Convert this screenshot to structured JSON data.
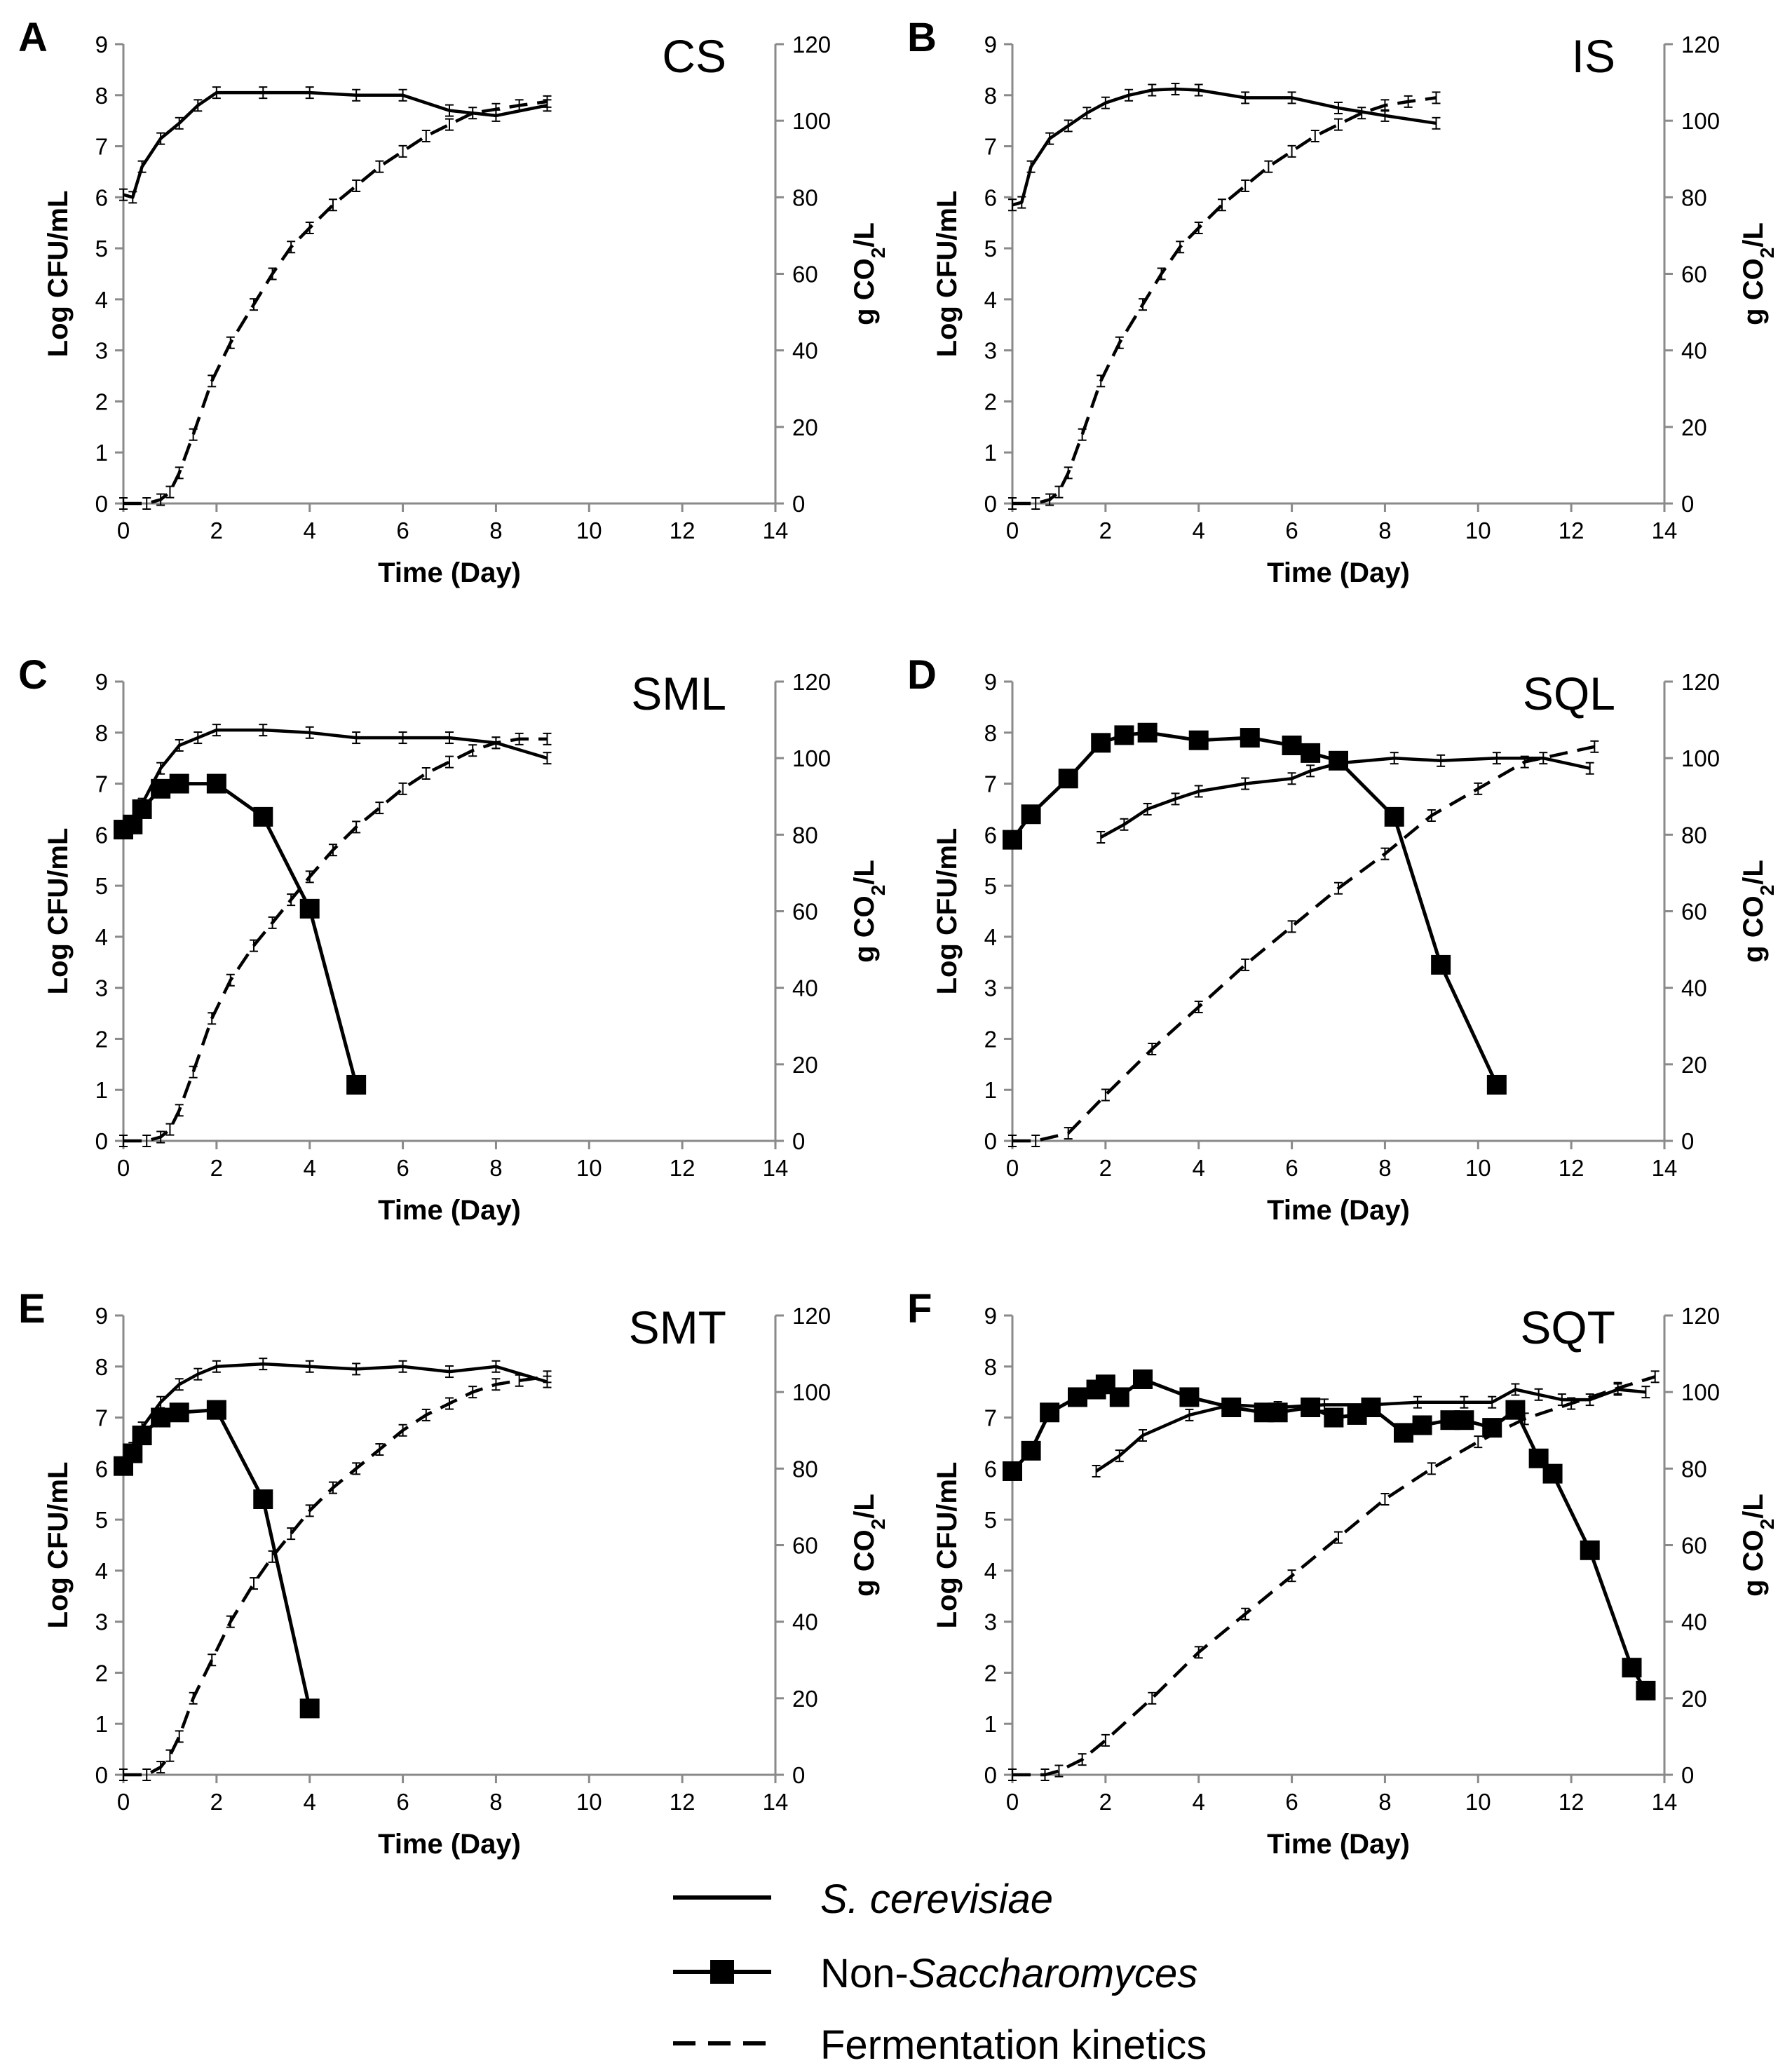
{
  "legend": {
    "s_cerevisiae": {
      "label": "S. cerevisiae",
      "italic": true
    },
    "non_sacch": {
      "label_prefix": "Non-",
      "label_italic": "Saccharomyces"
    },
    "fermentation": {
      "label": "Fermentation kinetics"
    }
  },
  "chart_data": [
    {
      "type": "line",
      "letter": "A",
      "title": "CS",
      "xlabel": "Time (Day)",
      "ylabel_left": "Log CFU/mL",
      "ylabel_right_prefix": "g CO",
      "ylabel_right_sub": "2",
      "ylabel_right_suffix": "/L",
      "xlim": [
        0,
        14
      ],
      "ylim_left": [
        0,
        9
      ],
      "ylim_right": [
        0,
        120
      ],
      "x_ticks": [
        "0",
        "2",
        "4",
        "6",
        "8",
        "10",
        "12",
        "14"
      ],
      "y_left_ticks": [
        "0",
        "1",
        "2",
        "3",
        "4",
        "5",
        "6",
        "7",
        "8",
        "9"
      ],
      "y_right_ticks": [
        "0",
        "20",
        "40",
        "60",
        "80",
        "100",
        "120"
      ],
      "series": [
        {
          "name": "S. cerevisiae",
          "style": "solid",
          "axis": "left",
          "x": [
            0,
            0.2,
            0.4,
            0.8,
            1.2,
            1.6,
            2,
            3,
            4,
            5,
            6,
            7,
            8,
            9.1
          ],
          "y": [
            6.05,
            6.0,
            6.6,
            7.15,
            7.45,
            7.8,
            8.05,
            8.05,
            8.05,
            8.0,
            8.0,
            7.7,
            7.6,
            7.8
          ]
        },
        {
          "name": "Fermentation kinetics",
          "style": "dashed",
          "axis": "right",
          "x": [
            0,
            0.5,
            0.8,
            1.0,
            1.2,
            1.5,
            1.9,
            2.3,
            2.8,
            3.2,
            3.6,
            4.0,
            4.5,
            5.0,
            5.5,
            6.0,
            6.5,
            7.0,
            7.5,
            8.0,
            8.5,
            9.1
          ],
          "y": [
            0,
            0,
            1,
            3,
            8,
            18,
            32,
            42,
            52,
            60,
            67,
            72,
            78,
            83,
            88,
            92,
            96,
            99,
            102,
            103,
            104,
            105
          ]
        }
      ]
    },
    {
      "type": "line",
      "letter": "B",
      "title": "IS",
      "xlabel": "Time (Day)",
      "ylabel_left": "Log CFU/mL",
      "ylabel_right_prefix": "g CO",
      "ylabel_right_sub": "2",
      "ylabel_right_suffix": "/L",
      "xlim": [
        0,
        14
      ],
      "ylim_left": [
        0,
        9
      ],
      "ylim_right": [
        0,
        120
      ],
      "x_ticks": [
        "0",
        "2",
        "4",
        "6",
        "8",
        "10",
        "12",
        "14"
      ],
      "y_left_ticks": [
        "0",
        "1",
        "2",
        "3",
        "4",
        "5",
        "6",
        "7",
        "8",
        "9"
      ],
      "y_right_ticks": [
        "0",
        "20",
        "40",
        "60",
        "80",
        "100",
        "120"
      ],
      "series": [
        {
          "name": "S. cerevisiae",
          "style": "solid",
          "axis": "left",
          "x": [
            0,
            0.2,
            0.4,
            0.8,
            1.2,
            1.6,
            2,
            2.5,
            3,
            3.5,
            4,
            5,
            6,
            7,
            8,
            9.1
          ],
          "y": [
            5.85,
            5.9,
            6.6,
            7.15,
            7.4,
            7.65,
            7.85,
            8.0,
            8.1,
            8.12,
            8.1,
            7.95,
            7.95,
            7.75,
            7.6,
            7.45
          ]
        },
        {
          "name": "Fermentation kinetics",
          "style": "dashed",
          "axis": "right",
          "x": [
            0,
            0.5,
            0.8,
            1.0,
            1.2,
            1.5,
            1.9,
            2.3,
            2.8,
            3.2,
            3.6,
            4.0,
            4.5,
            5.0,
            5.5,
            6.0,
            6.5,
            7.0,
            7.5,
            8.0,
            8.5,
            9.1
          ],
          "y": [
            0,
            0,
            1,
            3,
            8,
            18,
            32,
            42,
            52,
            60,
            67,
            72,
            78,
            83,
            88,
            92,
            96,
            99,
            102,
            104,
            105,
            106
          ]
        }
      ]
    },
    {
      "type": "line",
      "letter": "C",
      "title": "SML",
      "xlabel": "Time (Day)",
      "ylabel_left": "Log CFU/mL",
      "ylabel_right_prefix": "g CO",
      "ylabel_right_sub": "2",
      "ylabel_right_suffix": "/L",
      "xlim": [
        0,
        14
      ],
      "ylim_left": [
        0,
        9
      ],
      "ylim_right": [
        0,
        120
      ],
      "x_ticks": [
        "0",
        "2",
        "4",
        "6",
        "8",
        "10",
        "12",
        "14"
      ],
      "y_left_ticks": [
        "0",
        "1",
        "2",
        "3",
        "4",
        "5",
        "6",
        "7",
        "8",
        "9"
      ],
      "y_right_ticks": [
        "0",
        "20",
        "40",
        "60",
        "80",
        "100",
        "120"
      ],
      "series": [
        {
          "name": "S. cerevisiae",
          "style": "solid",
          "axis": "left",
          "x": [
            0,
            0.2,
            0.4,
            0.8,
            1.2,
            1.6,
            2,
            3,
            4,
            5,
            6,
            7,
            8,
            9.1
          ],
          "y": [
            6.1,
            6.2,
            6.6,
            7.3,
            7.75,
            7.9,
            8.05,
            8.05,
            8.0,
            7.9,
            7.9,
            7.9,
            7.8,
            7.5
          ]
        },
        {
          "name": "Non-Saccharomyces",
          "style": "squares",
          "axis": "left",
          "x": [
            0,
            0.2,
            0.4,
            0.8,
            1.2,
            2,
            3,
            4,
            5
          ],
          "y": [
            6.1,
            6.2,
            6.5,
            6.9,
            7.0,
            7.0,
            6.35,
            4.55,
            1.1
          ]
        },
        {
          "name": "Fermentation kinetics",
          "style": "dashed",
          "axis": "right",
          "x": [
            0,
            0.5,
            0.8,
            1.0,
            1.2,
            1.5,
            1.9,
            2.3,
            2.8,
            3.2,
            3.6,
            4.0,
            4.5,
            5.0,
            5.5,
            6.0,
            6.5,
            7.0,
            7.5,
            8.0,
            8.5,
            9.1
          ],
          "y": [
            0,
            0,
            1,
            3,
            8,
            18,
            32,
            42,
            51,
            57,
            63,
            69,
            76,
            82,
            87,
            92,
            96,
            99,
            102,
            104,
            105,
            105
          ]
        }
      ]
    },
    {
      "type": "line",
      "letter": "D",
      "title": "SQL",
      "xlabel": "Time (Day)",
      "ylabel_left": "Log CFU/mL",
      "ylabel_right_prefix": "g CO",
      "ylabel_right_sub": "2",
      "ylabel_right_suffix": "/L",
      "xlim": [
        0,
        14
      ],
      "ylim_left": [
        0,
        9
      ],
      "ylim_right": [
        0,
        120
      ],
      "x_ticks": [
        "0",
        "2",
        "4",
        "6",
        "8",
        "10",
        "12",
        "14"
      ],
      "y_left_ticks": [
        "0",
        "1",
        "2",
        "3",
        "4",
        "5",
        "6",
        "7",
        "8",
        "9"
      ],
      "y_right_ticks": [
        "0",
        "20",
        "40",
        "60",
        "80",
        "100",
        "120"
      ],
      "series": [
        {
          "name": "S. cerevisiae",
          "style": "solid",
          "axis": "left",
          "x": [
            1.9,
            2.4,
            2.9,
            3.5,
            4.0,
            5.0,
            6.0,
            6.4,
            7.0,
            8.2,
            9.2,
            10.4,
            11.4,
            12.4
          ],
          "y": [
            5.95,
            6.2,
            6.5,
            6.7,
            6.85,
            7.0,
            7.1,
            7.25,
            7.4,
            7.5,
            7.45,
            7.5,
            7.5,
            7.3
          ]
        },
        {
          "name": "Non-Saccharomyces",
          "style": "squares",
          "axis": "left",
          "x": [
            0,
            0.4,
            1.2,
            1.9,
            2.4,
            2.9,
            4.0,
            5.1,
            6.0,
            6.4,
            7.0,
            8.2,
            9.2,
            10.4
          ],
          "y": [
            5.9,
            6.4,
            7.1,
            7.8,
            7.95,
            8.0,
            7.85,
            7.9,
            7.75,
            7.6,
            7.45,
            6.35,
            3.45,
            1.1
          ]
        },
        {
          "name": "Fermentation kinetics",
          "style": "dashed",
          "axis": "right",
          "x": [
            0,
            0.5,
            1.2,
            2.0,
            3.0,
            4.0,
            5.0,
            6.0,
            7.0,
            8.0,
            9.0,
            10.0,
            11.0,
            12.5
          ],
          "y": [
            0,
            0,
            2,
            12,
            24,
            35,
            46,
            56,
            66,
            75,
            85,
            92,
            99,
            103
          ]
        }
      ]
    },
    {
      "type": "line",
      "letter": "E",
      "title": "SMT",
      "xlabel": "Time (Day)",
      "ylabel_left": "Log CFU/mL",
      "ylabel_right_prefix": "g CO",
      "ylabel_right_sub": "2",
      "ylabel_right_suffix": "/L",
      "xlim": [
        0,
        14
      ],
      "ylim_left": [
        0,
        9
      ],
      "ylim_right": [
        0,
        120
      ],
      "x_ticks": [
        "0",
        "2",
        "4",
        "6",
        "8",
        "10",
        "12",
        "14"
      ],
      "y_left_ticks": [
        "0",
        "1",
        "2",
        "3",
        "4",
        "5",
        "6",
        "7",
        "8",
        "9"
      ],
      "y_right_ticks": [
        "0",
        "20",
        "40",
        "60",
        "80",
        "100",
        "120"
      ],
      "series": [
        {
          "name": "S. cerevisiae",
          "style": "solid",
          "axis": "left",
          "x": [
            0,
            0.2,
            0.4,
            0.8,
            1.2,
            1.6,
            2,
            3,
            4,
            5,
            6,
            7,
            8,
            9.1
          ],
          "y": [
            6.1,
            6.4,
            6.8,
            7.3,
            7.65,
            7.85,
            8.0,
            8.05,
            8.0,
            7.95,
            8.0,
            7.9,
            8.0,
            7.7
          ]
        },
        {
          "name": "Non-Saccharomyces",
          "style": "squares",
          "axis": "left",
          "x": [
            0,
            0.2,
            0.4,
            0.8,
            1.2,
            2,
            3,
            4
          ],
          "y": [
            6.05,
            6.3,
            6.65,
            7.0,
            7.1,
            7.15,
            5.4,
            1.3
          ]
        },
        {
          "name": "Fermentation kinetics",
          "style": "dashed",
          "axis": "right",
          "x": [
            0,
            0.5,
            0.8,
            1.0,
            1.2,
            1.5,
            1.9,
            2.3,
            2.8,
            3.2,
            3.6,
            4.0,
            4.5,
            5.0,
            5.5,
            6.0,
            6.5,
            7.0,
            7.5,
            8.0,
            8.5,
            9.1
          ],
          "y": [
            0,
            0,
            2,
            5,
            10,
            20,
            30,
            40,
            50,
            57,
            63,
            69,
            75,
            80,
            85,
            90,
            94,
            97,
            100,
            102,
            103,
            104
          ]
        }
      ]
    },
    {
      "type": "line",
      "letter": "F",
      "title": "SQT",
      "xlabel": "Time (Day)",
      "ylabel_left": "Log CFU/mL",
      "ylabel_right_prefix": "g CO",
      "ylabel_right_sub": "2",
      "ylabel_right_suffix": "/L",
      "xlim": [
        0,
        14
      ],
      "ylim_left": [
        0,
        9
      ],
      "ylim_right": [
        0,
        120
      ],
      "x_ticks": [
        "0",
        "2",
        "4",
        "6",
        "8",
        "10",
        "12",
        "14"
      ],
      "y_left_ticks": [
        "0",
        "1",
        "2",
        "3",
        "4",
        "5",
        "6",
        "7",
        "8",
        "9"
      ],
      "y_right_ticks": [
        "0",
        "20",
        "40",
        "60",
        "80",
        "100",
        "120"
      ],
      "series": [
        {
          "name": "S. cerevisiae",
          "style": "solid",
          "axis": "left",
          "x": [
            1.8,
            2.3,
            2.8,
            3.8,
            4.7,
            5.7,
            6.7,
            7.7,
            8.7,
            9.7,
            10.3,
            10.8,
            11.3,
            11.8,
            12.4,
            13.0,
            13.6
          ],
          "y": [
            5.95,
            6.25,
            6.65,
            7.05,
            7.25,
            7.2,
            7.25,
            7.25,
            7.3,
            7.3,
            7.3,
            7.55,
            7.45,
            7.35,
            7.35,
            7.55,
            7.5
          ]
        },
        {
          "name": "Non-Saccharomyces",
          "style": "squares",
          "axis": "left",
          "x": [
            0,
            0.4,
            0.8,
            1.4,
            1.8,
            2.0,
            2.3,
            2.8,
            3.8,
            4.7,
            5.4,
            5.7,
            6.4,
            6.9,
            7.4,
            7.7,
            8.4,
            8.8,
            9.4,
            9.7,
            10.3,
            10.8,
            11.3,
            11.6,
            12.4,
            13.3,
            13.6
          ],
          "y": [
            5.95,
            6.35,
            7.1,
            7.4,
            7.55,
            7.65,
            7.4,
            7.75,
            7.4,
            7.2,
            7.1,
            7.1,
            7.2,
            7.0,
            7.05,
            7.2,
            6.7,
            6.85,
            6.95,
            6.95,
            6.8,
            7.15,
            6.2,
            5.9,
            4.4,
            2.1,
            1.65
          ]
        },
        {
          "name": "Fermentation kinetics",
          "style": "dashed",
          "axis": "right",
          "x": [
            0,
            0.7,
            1.0,
            1.5,
            2.0,
            3.0,
            4.0,
            5.0,
            6.0,
            7.0,
            8.0,
            9.0,
            10.0,
            11.0,
            12.0,
            13.0,
            13.8
          ],
          "y": [
            0,
            0,
            1,
            4,
            9,
            20,
            32,
            42,
            52,
            62,
            72,
            80,
            87,
            93,
            97,
            101,
            104
          ]
        }
      ]
    }
  ]
}
